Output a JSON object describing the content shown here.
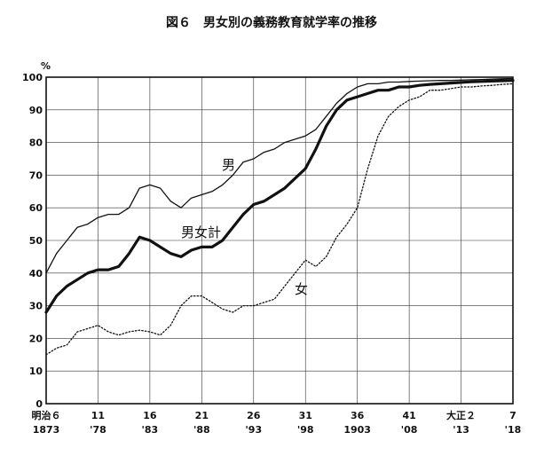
{
  "chart_data": {
    "type": "line",
    "title": "図６　男女別の義務教育就学率の推移",
    "unit": "%",
    "ylim": [
      0,
      100
    ],
    "yticks": [
      0,
      10,
      20,
      30,
      40,
      50,
      60,
      70,
      80,
      90,
      100
    ],
    "xlim": [
      1873,
      1918
    ],
    "grid": true,
    "x_tick_labels": [
      {
        "x": 1873,
        "top": "明治６",
        "bottom": "1873"
      },
      {
        "x": 1878,
        "top": "11",
        "bottom": "'78"
      },
      {
        "x": 1883,
        "top": "16",
        "bottom": "'83"
      },
      {
        "x": 1888,
        "top": "21",
        "bottom": "'88"
      },
      {
        "x": 1893,
        "top": "26",
        "bottom": "'93"
      },
      {
        "x": 1898,
        "top": "31",
        "bottom": "'98"
      },
      {
        "x": 1903,
        "top": "36",
        "bottom": "1903"
      },
      {
        "x": 1908,
        "top": "41",
        "bottom": "'08"
      },
      {
        "x": 1913,
        "top": "大正２",
        "bottom": "'13"
      },
      {
        "x": 1918,
        "top": "7",
        "bottom": "'18"
      }
    ],
    "series": [
      {
        "name": "男",
        "style": "thin",
        "color": "#111111",
        "x": [
          1873,
          1874,
          1875,
          1876,
          1877,
          1878,
          1879,
          1880,
          1881,
          1882,
          1883,
          1884,
          1885,
          1886,
          1887,
          1888,
          1889,
          1890,
          1891,
          1892,
          1893,
          1894,
          1895,
          1896,
          1897,
          1898,
          1899,
          1900,
          1901,
          1902,
          1903,
          1904,
          1905,
          1906,
          1907,
          1908,
          1909,
          1910,
          1911,
          1912,
          1913,
          1914,
          1915,
          1916,
          1917,
          1918
        ],
        "values": [
          40,
          46,
          50,
          54,
          55,
          57,
          58,
          58,
          60,
          66,
          67,
          66,
          62,
          60,
          63,
          64,
          65,
          67,
          70,
          74,
          75,
          77,
          78,
          80,
          81,
          82,
          84,
          88,
          92,
          95,
          97,
          98,
          98,
          98.5,
          98.5,
          98.7,
          98.8,
          98.9,
          99,
          99,
          99.1,
          99.2,
          99.3,
          99.4,
          99.5,
          99.6
        ]
      },
      {
        "name": "男女計",
        "style": "thick",
        "color": "#111111",
        "x": [
          1873,
          1874,
          1875,
          1876,
          1877,
          1878,
          1879,
          1880,
          1881,
          1882,
          1883,
          1884,
          1885,
          1886,
          1887,
          1888,
          1889,
          1890,
          1891,
          1892,
          1893,
          1894,
          1895,
          1896,
          1897,
          1898,
          1899,
          1900,
          1901,
          1902,
          1903,
          1904,
          1905,
          1906,
          1907,
          1908,
          1909,
          1910,
          1911,
          1912,
          1913,
          1914,
          1915,
          1916,
          1917,
          1918
        ],
        "values": [
          28,
          33,
          36,
          38,
          40,
          41,
          41,
          42,
          46,
          51,
          50,
          48,
          46,
          45,
          47,
          48,
          48,
          50,
          54,
          58,
          61,
          62,
          64,
          66,
          69,
          72,
          78,
          85,
          90,
          93,
          94,
          95,
          96,
          96,
          97,
          97,
          97.5,
          97.8,
          98,
          98.2,
          98.4,
          98.6,
          98.7,
          98.8,
          98.9,
          99
        ]
      },
      {
        "name": "女",
        "style": "dotted",
        "color": "#111111",
        "x": [
          1873,
          1874,
          1875,
          1876,
          1877,
          1878,
          1879,
          1880,
          1881,
          1882,
          1883,
          1884,
          1885,
          1886,
          1887,
          1888,
          1889,
          1890,
          1891,
          1892,
          1893,
          1894,
          1895,
          1896,
          1897,
          1898,
          1899,
          1900,
          1901,
          1902,
          1903,
          1904,
          1905,
          1906,
          1907,
          1908,
          1909,
          1910,
          1911,
          1912,
          1913,
          1914,
          1915,
          1916,
          1917,
          1918
        ],
        "values": [
          15,
          17,
          18,
          22,
          23,
          24,
          22,
          21,
          22,
          22.5,
          22,
          21,
          24,
          30,
          33,
          33,
          31,
          29,
          28,
          30,
          30,
          31,
          32,
          36,
          40,
          44,
          42,
          45,
          51,
          55,
          60,
          72,
          82,
          88,
          91,
          93,
          94,
          96,
          96,
          96.5,
          97,
          97,
          97.3,
          97.5,
          97.8,
          98
        ]
      }
    ],
    "annotations": [
      {
        "text": "男",
        "series": "男"
      },
      {
        "text": "男女計",
        "series": "男女計"
      },
      {
        "text": "女",
        "series": "女"
      }
    ]
  }
}
